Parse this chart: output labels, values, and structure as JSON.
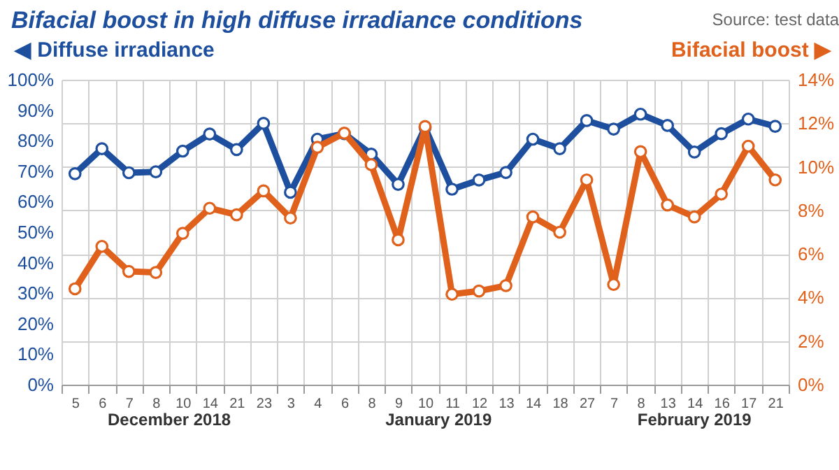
{
  "chart_data": {
    "type": "line",
    "title": "Bifacial boost in high diffuse irradiance conditions",
    "ylabel": "◀ Diffuse irradiance",
    "y2label": "Bifacial boost ▶",
    "annotations": [
      "Source: test data",
      "December 2018",
      "January 2019",
      "February 2019"
    ],
    "categories": [
      "5",
      "6",
      "7",
      "8",
      "10",
      "14",
      "21",
      "23",
      "3",
      "4",
      "6",
      "8",
      "9",
      "10",
      "11",
      "12",
      "13",
      "14",
      "18",
      "27",
      "7",
      "8",
      "13",
      "14",
      "16",
      "17",
      "21"
    ],
    "series": [
      {
        "color": "#1d4f9e",
        "values": [
          69.2,
          77.4,
          69.5,
          69.8,
          76.6,
          82.2,
          77.1,
          85.7,
          63.1,
          80.5,
          82.3,
          75.6,
          65.7,
          84.3,
          64.1,
          67.1,
          69.6,
          80.5,
          77.4,
          86.6,
          83.8,
          88.7,
          85.0,
          76.3,
          82.3,
          87.1,
          84.7
        ]
      },
      {
        "color": "#e0611c",
        "axis": "y2",
        "values": [
          4.4,
          6.35,
          5.2,
          5.15,
          6.95,
          8.1,
          7.8,
          8.9,
          7.65,
          10.9,
          11.55,
          10.1,
          6.65,
          11.85,
          4.15,
          4.3,
          4.55,
          7.7,
          7.0,
          9.4,
          4.6,
          10.7,
          8.25,
          7.7,
          8.75,
          10.95,
          9.4
        ]
      }
    ],
    "ylim": [
      0,
      100
    ],
    "yticks": [
      {
        "value": 0,
        "label": "0%"
      },
      {
        "value": 10,
        "label": "10%"
      },
      {
        "value": 20,
        "label": "20%"
      },
      {
        "value": 30,
        "label": "30%"
      },
      {
        "value": 40,
        "label": "40%"
      },
      {
        "value": 50,
        "label": "50%"
      },
      {
        "value": 60,
        "label": "60%"
      },
      {
        "value": 70,
        "label": "70%"
      },
      {
        "value": 80,
        "label": "80%"
      },
      {
        "value": 90,
        "label": "90%"
      },
      {
        "value": 100,
        "label": "100%"
      }
    ],
    "y2lim": [
      0,
      14
    ],
    "y2ticks": [
      {
        "value": 0,
        "label": "0%"
      },
      {
        "value": 2,
        "label": "2%"
      },
      {
        "value": 4,
        "label": "4%"
      },
      {
        "value": 6,
        "label": "6%"
      },
      {
        "value": 8,
        "label": "8%"
      },
      {
        "value": 10,
        "label": "10%"
      },
      {
        "value": 12,
        "label": "12%"
      },
      {
        "value": 14,
        "label": "14%"
      }
    ],
    "grid": true,
    "marker": "circle",
    "line_style": "solid"
  }
}
